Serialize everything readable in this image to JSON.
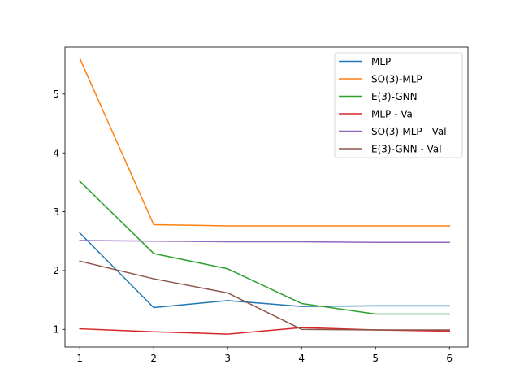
{
  "chart_data": {
    "type": "line",
    "title": "",
    "xlabel": "",
    "ylabel": "",
    "x": [
      1,
      2,
      3,
      4,
      5,
      6
    ],
    "xlim": [
      0.8,
      6.25
    ],
    "ylim": [
      0.7,
      5.8
    ],
    "xticks": [
      "1",
      "2",
      "3",
      "4",
      "5",
      "6"
    ],
    "yticks": [
      "1",
      "2",
      "3",
      "4",
      "5"
    ],
    "grid": false,
    "legend_position": "top-right",
    "series": [
      {
        "name": "MLP",
        "color": "#1f77b4",
        "values": [
          2.64,
          1.37,
          1.49,
          1.39,
          1.4,
          1.4
        ]
      },
      {
        "name": "SO(3)-MLP",
        "color": "#ff7f0e",
        "values": [
          5.61,
          2.78,
          2.76,
          2.76,
          2.76,
          2.76
        ]
      },
      {
        "name": "E(3)-GNN",
        "color": "#2ca02c",
        "values": [
          3.52,
          2.29,
          2.03,
          1.44,
          1.26,
          1.26
        ]
      },
      {
        "name": "MLP - Val",
        "color": "#d62728",
        "values": [
          1.01,
          0.96,
          0.92,
          1.03,
          0.99,
          0.97
        ]
      },
      {
        "name": "SO(3)-MLP - Val",
        "color": "#9467bd",
        "values": [
          2.51,
          2.5,
          2.49,
          2.49,
          2.48,
          2.48
        ]
      },
      {
        "name": "E(3)-GNN - Val",
        "color": "#8c564b",
        "values": [
          2.16,
          1.86,
          1.62,
          1.0,
          0.99,
          0.99
        ]
      }
    ]
  }
}
